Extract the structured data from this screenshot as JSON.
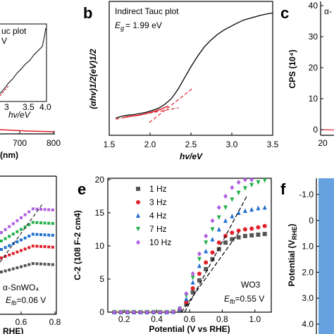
{
  "panel_letters": {
    "b": "b",
    "c": "c",
    "e": "e",
    "f": "f"
  },
  "panel_a_fragment": {
    "x_ticks": [
      "700",
      "800"
    ],
    "x_label": "(nm)",
    "inset_label_1": "uc plot",
    "inset_label_2": "V",
    "inset_ticks": [
      "3",
      "3.5",
      "4.0"
    ],
    "inset_xlabel": "hv/eV"
  },
  "panel_c_fragment": {
    "y_label": "CPS (10⁴)",
    "y_ticks": [
      "0",
      "10",
      "20",
      "30",
      "40"
    ],
    "x_tick": "20",
    "corner_text": "α-"
  },
  "panel_d_fragment": {
    "x_ticks": [
      "0.6",
      "0.8"
    ],
    "x_label": "RHE)",
    "sample": "α-SnWO₄",
    "efb_label": "E",
    "efb_sub": "fb",
    "efb_value": "=0.06 V",
    "colors": [
      "#555555",
      "#e0202a",
      "#1f6fd0",
      "#25b04a",
      "#b060e0"
    ]
  },
  "panel_f_fragment": {
    "y_label": "Potential (V",
    "y_label_sub": "RHE",
    "y_ticks": [
      "-1.0",
      "0",
      "1.0",
      "2.0",
      "3.0",
      "4.0"
    ],
    "bar_color": "#4a90d9"
  },
  "chart_data": [
    {
      "panel": "b",
      "type": "line",
      "title": "Indirect Tauc plot",
      "eg_label": "E",
      "eg_sub": "g",
      "eg_value": "= 1.99 eV",
      "xlabel": "hv/eV",
      "ylabel": "(αhv)1/2(eV)1/2",
      "xlim": [
        1.5,
        3.5
      ],
      "ylim": [
        0,
        1
      ],
      "x_ticks": [
        "1.5",
        "2.0",
        "2.5",
        "3.0",
        "3.5"
      ],
      "grid": false,
      "series": [
        {
          "x": [
            1.58,
            1.65,
            1.72,
            1.8,
            1.88,
            1.95,
            2.02,
            2.1,
            2.18,
            2.26,
            2.34,
            2.42,
            2.5,
            2.58,
            2.66,
            2.74,
            2.82,
            2.9,
            2.98,
            3.06,
            3.15,
            3.25,
            3.35,
            3.45,
            3.5
          ],
          "y": [
            0.04,
            0.055,
            0.065,
            0.07,
            0.08,
            0.09,
            0.105,
            0.125,
            0.16,
            0.21,
            0.29,
            0.39,
            0.49,
            0.58,
            0.66,
            0.72,
            0.77,
            0.81,
            0.84,
            0.87,
            0.9,
            0.92,
            0.94,
            0.955,
            0.96
          ],
          "color": "#000000"
        },
        {
          "x": [
            1.68,
            1.75,
            1.82,
            1.9,
            1.98,
            2.06,
            2.14,
            2.22
          ],
          "y": [
            0.045,
            0.055,
            0.06,
            0.07,
            0.085,
            0.1,
            0.12,
            0.145
          ],
          "color": "#e0202a"
        }
      ],
      "fit_lines": [
        {
          "x": [
            1.58,
            2.35
          ],
          "y": [
            0.03,
            0.13
          ],
          "color": "#e0202a"
        },
        {
          "x": [
            1.99,
            2.52
          ],
          "y": [
            0.0,
            0.3
          ],
          "color": "#e0202a"
        }
      ]
    },
    {
      "panel": "e",
      "type": "scatter",
      "xlabel": "Potential (V vs RHE)",
      "ylabel": "C-2 (108 F-2 cm4)",
      "xlim": [
        0.1,
        1.1
      ],
      "ylim": [
        0,
        20
      ],
      "x_ticks": [
        "0.2",
        "0.4",
        "0.6",
        "0.8",
        "1.0"
      ],
      "y_ticks": [
        "0",
        "5",
        "10",
        "15",
        "20"
      ],
      "sample": "WO3",
      "efb_label": "E",
      "efb_sub": "fb",
      "efb_value": "=0.55 V",
      "legend_position": "top-left",
      "series": [
        {
          "name": "1 Hz",
          "color": "#555555",
          "marker": "square",
          "x": [
            0.14,
            0.18,
            0.22,
            0.26,
            0.3,
            0.34,
            0.38,
            0.42,
            0.46,
            0.5,
            0.54,
            0.58,
            0.62,
            0.66,
            0.7,
            0.74,
            0.78,
            0.82,
            0.86,
            0.9,
            0.94,
            0.98,
            1.02,
            1.06
          ],
          "y": [
            0.0,
            0.0,
            0.0,
            0.0,
            0.0,
            0.0,
            0.0,
            0.0,
            0.0,
            0.05,
            0.2,
            1.2,
            3.0,
            4.8,
            6.5,
            8.0,
            9.5,
            10.5,
            11.0,
            11.3,
            11.5,
            11.6,
            11.7,
            11.8
          ]
        },
        {
          "name": "3 Hz",
          "color": "#e0202a",
          "marker": "circle",
          "x": [
            0.14,
            0.18,
            0.22,
            0.26,
            0.3,
            0.34,
            0.38,
            0.42,
            0.46,
            0.5,
            0.54,
            0.58,
            0.62,
            0.66,
            0.7,
            0.74,
            0.78,
            0.82,
            0.86,
            0.9,
            0.94,
            0.98,
            1.02,
            1.06
          ],
          "y": [
            0.0,
            0.0,
            0.0,
            0.0,
            0.0,
            0.0,
            0.0,
            0.0,
            0.0,
            0.05,
            0.3,
            1.5,
            3.6,
            5.8,
            7.5,
            9.0,
            10.5,
            11.5,
            12.0,
            12.3,
            12.5,
            12.6,
            12.8,
            13.0
          ]
        },
        {
          "name": "4 Hz",
          "color": "#1f6fd0",
          "marker": "triangle",
          "x": [
            0.14,
            0.18,
            0.22,
            0.26,
            0.3,
            0.34,
            0.38,
            0.42,
            0.46,
            0.5,
            0.54,
            0.58,
            0.62,
            0.66,
            0.7,
            0.74,
            0.78,
            0.82,
            0.86,
            0.9,
            0.94,
            0.98,
            1.02,
            1.06
          ],
          "y": [
            0.0,
            0.0,
            0.0,
            0.0,
            0.0,
            0.0,
            0.0,
            0.0,
            0.0,
            0.05,
            0.4,
            2.0,
            4.5,
            7.0,
            9.2,
            11.0,
            12.5,
            13.8,
            14.5,
            15.0,
            15.3,
            15.5,
            15.7,
            15.8
          ]
        },
        {
          "name": "7 Hz",
          "color": "#25b04a",
          "marker": "triangle-down",
          "x": [
            0.14,
            0.18,
            0.22,
            0.26,
            0.3,
            0.34,
            0.38,
            0.42,
            0.46,
            0.5,
            0.54,
            0.58,
            0.62,
            0.66,
            0.7,
            0.74,
            0.78,
            0.82,
            0.86,
            0.9,
            0.94,
            0.98,
            1.02,
            1.06
          ],
          "y": [
            0.0,
            0.0,
            0.0,
            0.0,
            0.0,
            0.0,
            0.0,
            0.0,
            0.0,
            0.05,
            0.5,
            2.5,
            5.2,
            8.0,
            10.5,
            12.5,
            14.3,
            15.8,
            17.0,
            18.0,
            18.7,
            19.2,
            19.6,
            19.9
          ]
        },
        {
          "name": "10 Hz",
          "color": "#b060e0",
          "marker": "diamond",
          "x": [
            0.14,
            0.18,
            0.22,
            0.26,
            0.3,
            0.34,
            0.38,
            0.42,
            0.46,
            0.5,
            0.54,
            0.58,
            0.62,
            0.66,
            0.7,
            0.74,
            0.78,
            0.82,
            0.86,
            0.9,
            0.94,
            0.98
          ],
          "y": [
            0.0,
            0.0,
            0.0,
            0.0,
            0.0,
            0.0,
            0.0,
            0.0,
            0.0,
            0.05,
            0.6,
            2.8,
            5.8,
            8.8,
            11.5,
            13.8,
            15.8,
            17.5,
            18.8,
            19.6,
            20.0,
            20.0
          ]
        }
      ],
      "fit_lines": [
        {
          "x": [
            0.55,
            0.9
          ],
          "y": [
            0.0,
            12.0
          ]
        },
        {
          "x": [
            0.57,
            0.95
          ],
          "y": [
            0.0,
            17.5
          ]
        }
      ]
    }
  ]
}
